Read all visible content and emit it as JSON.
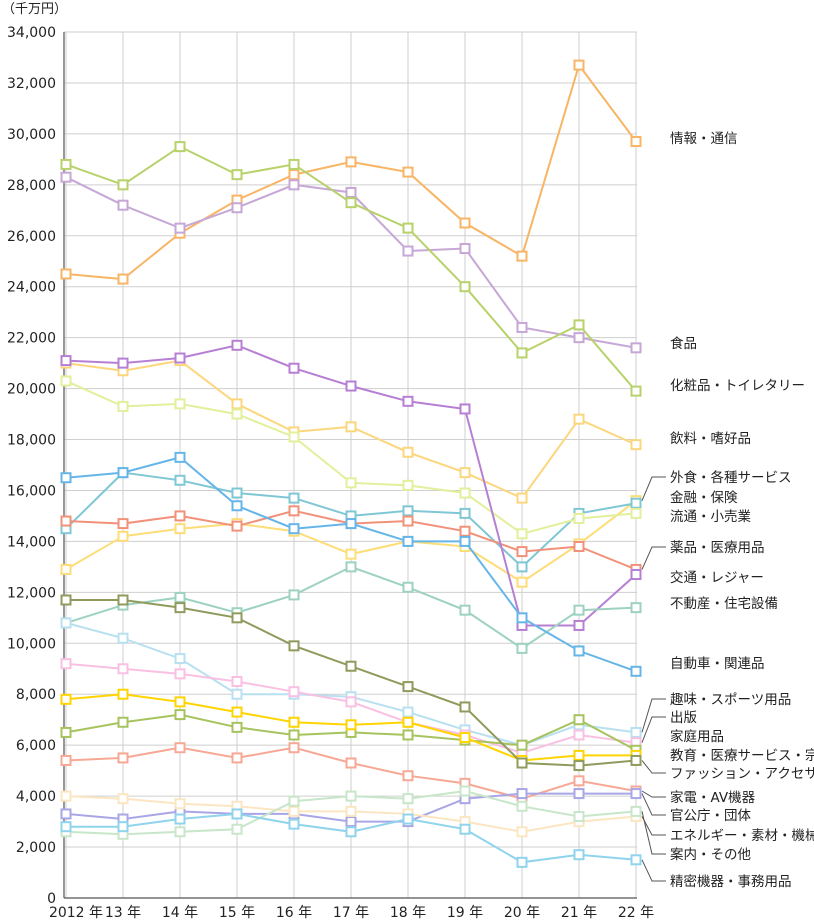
{
  "chart_data": {
    "type": "line",
    "unit_label": "（千万円）",
    "x": [
      "2012 年",
      "13 年",
      "14 年",
      "15 年",
      "16 年",
      "17 年",
      "18 年",
      "19 年",
      "20 年",
      "21 年",
      "22 年"
    ],
    "ylim": [
      0,
      34000
    ],
    "yticks": [
      0,
      2000,
      4000,
      6000,
      8000,
      10000,
      12000,
      14000,
      16000,
      18000,
      20000,
      22000,
      24000,
      26000,
      28000,
      30000,
      32000,
      34000
    ],
    "ytick_labels": [
      "0",
      "2,000",
      "4,000",
      "6,000",
      "8,000",
      "10,000",
      "12,000",
      "14,000",
      "16,000",
      "18,000",
      "20,000",
      "22,000",
      "24,000",
      "26,000",
      "28,000",
      "30,000",
      "32,000",
      "34,000"
    ],
    "grid": true,
    "series": [
      {
        "name": "情報・通信",
        "color": "#f7b565",
        "values": [
          24500,
          24300,
          26100,
          27400,
          28400,
          28900,
          28500,
          26500,
          25200,
          32700,
          29700
        ]
      },
      {
        "name": "食品",
        "color": "#c6a7d6",
        "values": [
          28300,
          27200,
          26300,
          27100,
          28000,
          27700,
          25400,
          25500,
          22400,
          22000,
          21600
        ]
      },
      {
        "name": "化粧品・トイレタリー",
        "color": "#b7d26a",
        "values": [
          28800,
          28000,
          29500,
          28400,
          28800,
          27300,
          26300,
          24000,
          21400,
          22500,
          19900
        ]
      },
      {
        "name": "飲料・嗜好品",
        "color": "#fcd67c",
        "values": [
          21000,
          20700,
          21100,
          19400,
          18300,
          18500,
          17500,
          16700,
          15700,
          18800,
          17800
        ]
      },
      {
        "name": "外食・各種サービス",
        "color": "#fddd77",
        "values": [
          12900,
          14200,
          14500,
          14700,
          14400,
          13500,
          14000,
          13800,
          12400,
          13900,
          15600
        ]
      },
      {
        "name": "金融・保険",
        "color": "#7fc7d4",
        "values": [
          14500,
          16700,
          16400,
          15900,
          15700,
          15000,
          15200,
          15100,
          13000,
          15100,
          15500
        ]
      },
      {
        "name": "流通・小売業",
        "color": "#e3ef9b",
        "values": [
          20300,
          19300,
          19400,
          19000,
          18100,
          16300,
          16200,
          15900,
          14300,
          14900,
          15100
        ]
      },
      {
        "name": "薬品・医療用品",
        "color": "#f2917a",
        "values": [
          14800,
          14700,
          15000,
          14600,
          15200,
          14700,
          14800,
          14400,
          13600,
          13800,
          12900
        ]
      },
      {
        "name": "交通・レジャー",
        "color": "#b77fd4",
        "values": [
          21100,
          21000,
          21200,
          21700,
          20800,
          20100,
          19500,
          19200,
          10700,
          10700,
          12700
        ]
      },
      {
        "name": "不動産・住宅設備",
        "color": "#9dd1c0",
        "values": [
          10800,
          11500,
          11800,
          11200,
          11900,
          13000,
          12200,
          11300,
          9800,
          11300,
          11400
        ]
      },
      {
        "name": "自動車・関連品",
        "color": "#65b5e8",
        "values": [
          16500,
          16700,
          17300,
          15400,
          14500,
          14700,
          14000,
          14000,
          11000,
          9700,
          8900
        ]
      },
      {
        "name": "趣味・スポーツ用品",
        "color": "#b8e0f0",
        "values": [
          10800,
          10200,
          9400,
          8000,
          8000,
          7900,
          7300,
          6600,
          6000,
          6800,
          6500
        ]
      },
      {
        "name": "出版",
        "color": "#f9c0e3",
        "values": [
          9200,
          9000,
          8800,
          8500,
          8100,
          7700,
          6900,
          6400,
          5700,
          6400,
          6100
        ]
      },
      {
        "name": "家庭用品",
        "color": "#a6c35e",
        "values": [
          6500,
          6900,
          7200,
          6700,
          6400,
          6500,
          6400,
          6200,
          6000,
          7000,
          5800
        ]
      },
      {
        "name": "教育・医療サービス・宗教",
        "color": "#ffd400",
        "values": [
          7800,
          8000,
          7700,
          7300,
          6900,
          6800,
          6900,
          6300,
          5400,
          5600,
          5600
        ]
      },
      {
        "name": "ファッション・アクセサリー",
        "color": "#8f9b5c",
        "values": [
          11700,
          11700,
          11400,
          11000,
          9900,
          9100,
          8300,
          7500,
          5300,
          5200,
          5400
        ]
      },
      {
        "name": "家電・AV機器",
        "color": "#f7a895",
        "values": [
          5400,
          5500,
          5900,
          5500,
          5900,
          5300,
          4800,
          4500,
          3900,
          4600,
          4200
        ]
      },
      {
        "name": "官公庁・団体",
        "color": "#a9a6e6",
        "values": [
          3300,
          3100,
          3400,
          3300,
          3300,
          3000,
          3000,
          3900,
          4100,
          4100,
          4100
        ]
      },
      {
        "name": "エネルギー・素材・機械",
        "color": "#fbe6c1",
        "values": [
          4000,
          3900,
          3700,
          3600,
          3400,
          3400,
          3300,
          3000,
          2600,
          3000,
          3200
        ]
      },
      {
        "name": "案内・その他",
        "color": "#c8e6c9",
        "values": [
          2600,
          2500,
          2600,
          2700,
          3800,
          4000,
          3900,
          4200,
          3600,
          3200,
          3400
        ]
      },
      {
        "name": "精密機器・事務用品",
        "color": "#8fd3ec",
        "values": [
          2800,
          2800,
          3100,
          3300,
          2900,
          2600,
          3100,
          2700,
          1400,
          1700,
          1500
        ]
      }
    ]
  }
}
